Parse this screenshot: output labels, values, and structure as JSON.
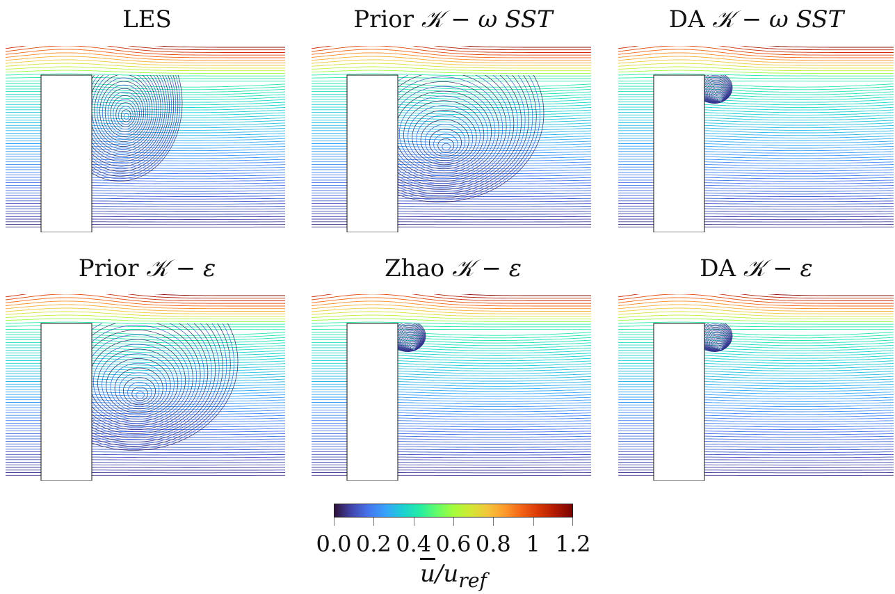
{
  "panels": [
    {
      "title_main": "LES",
      "title_model": "",
      "pattern": "les"
    },
    {
      "title_main": "Prior ",
      "title_model": "𝒦 − ω SST",
      "pattern": "big_vortex"
    },
    {
      "title_main": "DA ",
      "title_model": "𝒦 − ω SST",
      "pattern": "small_vortex"
    },
    {
      "title_main": "Prior ",
      "title_model": "𝒦 − ε",
      "pattern": "big_vortex"
    },
    {
      "title_main": "Zhao ",
      "title_model": "𝒦 − ε",
      "pattern": "small_vortex"
    },
    {
      "title_main": "DA ",
      "title_model": "𝒦 − ε",
      "pattern": "small_vortex"
    }
  ],
  "colorbar": {
    "ticks": [
      "0.0",
      "0.2",
      "0.4",
      "0.6",
      "0.8",
      "1",
      "1.2"
    ],
    "tick_values": [
      0.0,
      0.2,
      0.4,
      0.6,
      0.8,
      1.0,
      1.2
    ],
    "range": [
      0.0,
      1.2
    ],
    "label_u": "u",
    "label_rest": "/u",
    "label_sub": "ref",
    "colormap": [
      "#30123b",
      "#4145ab",
      "#4675ed",
      "#39a2fc",
      "#1bcfd4",
      "#24eca6",
      "#61fc6c",
      "#a4fc3b",
      "#d1e834",
      "#f3c63a",
      "#fe9b2d",
      "#f36315",
      "#d93806",
      "#b11901",
      "#7a0402"
    ]
  }
}
